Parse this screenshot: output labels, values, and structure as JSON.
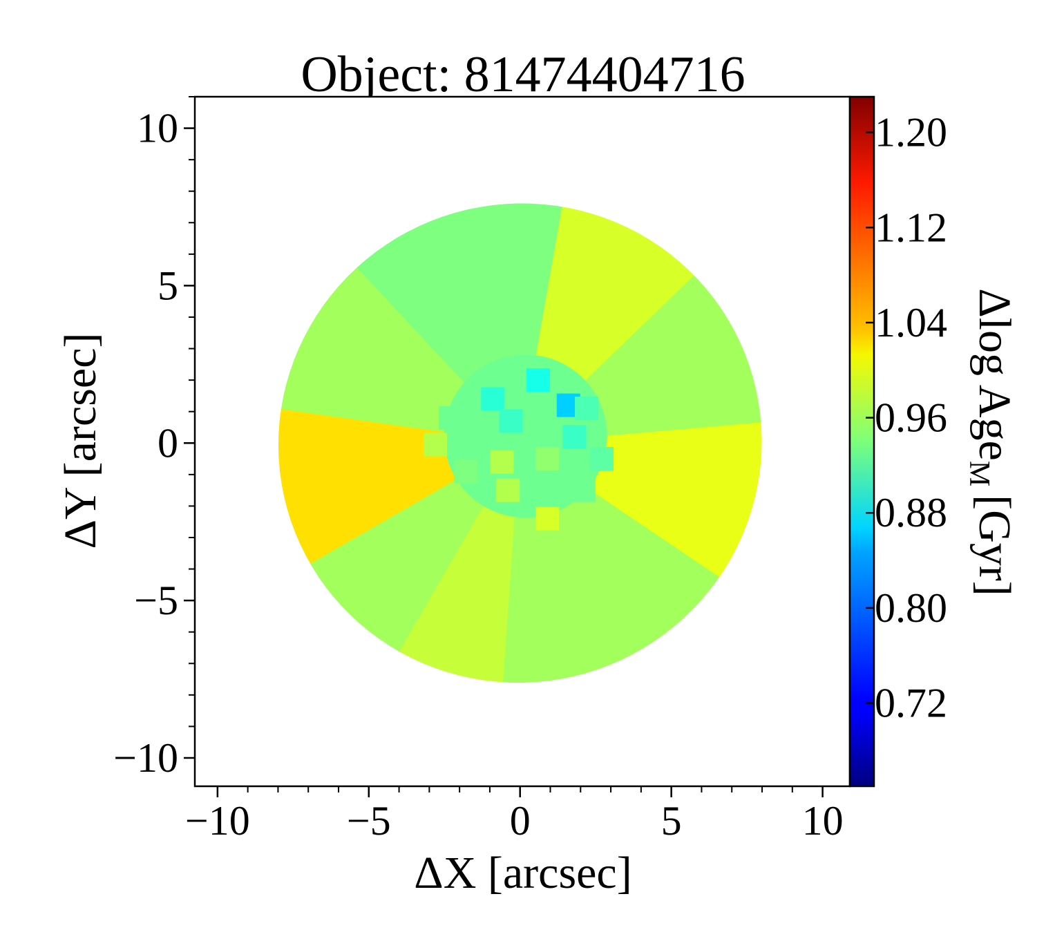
{
  "chart_data": {
    "type": "heatmap",
    "title": "Object: 81474404716",
    "xlabel": "ΔX [arcsec]",
    "ylabel": "ΔY [arcsec]",
    "colorbar_label": "Δlog Age",
    "colorbar_label_sub": "M",
    "colorbar_label_unit": "[Gyr]",
    "xlim": [
      -10.75,
      10.9
    ],
    "ylim": [
      -10.9,
      11.0
    ],
    "xticks": [
      {
        "value": -10,
        "label": "−10"
      },
      {
        "value": -5,
        "label": "−5"
      },
      {
        "value": 0,
        "label": "0"
      },
      {
        "value": 5,
        "label": "5"
      },
      {
        "value": 10,
        "label": "10"
      }
    ],
    "yticks": [
      {
        "value": 10,
        "label": "10"
      },
      {
        "value": 5,
        "label": "5"
      },
      {
        "value": 0,
        "label": "0"
      },
      {
        "value": -5,
        "label": "−5"
      },
      {
        "value": -10,
        "label": "−10"
      }
    ],
    "colorbar": {
      "vmin": 0.65,
      "vmax": 1.23,
      "colormap": "jet",
      "ticks": [
        {
          "value": 1.2,
          "label": "1.20"
        },
        {
          "value": 1.12,
          "label": "1.12"
        },
        {
          "value": 1.04,
          "label": "1.04"
        },
        {
          "value": 0.96,
          "label": "0.96"
        },
        {
          "value": 0.88,
          "label": "0.88"
        },
        {
          "value": 0.8,
          "label": "0.80"
        },
        {
          "value": 0.72,
          "label": "0.72"
        }
      ]
    },
    "map": {
      "shape": "tilted ellipse",
      "center_xy": [
        0,
        0
      ],
      "semi_axes": [
        8.0,
        7.6
      ],
      "sectors": [
        {
          "from_deg": -34,
          "to_deg": 5,
          "value": 1.0
        },
        {
          "from_deg": 5,
          "to_deg": 44,
          "value": 0.96
        },
        {
          "from_deg": 44,
          "to_deg": 80,
          "value": 0.99
        },
        {
          "from_deg": 80,
          "to_deg": 133,
          "value": 0.94
        },
        {
          "from_deg": 133,
          "to_deg": 172,
          "value": 0.96
        },
        {
          "from_deg": 172,
          "to_deg": 210,
          "value": 1.03
        },
        {
          "from_deg": 210,
          "to_deg": 240,
          "value": 0.96
        },
        {
          "from_deg": 240,
          "to_deg": 266,
          "value": 0.98
        },
        {
          "from_deg": 266,
          "to_deg": 326,
          "value": 0.96
        }
      ],
      "core_bins": [
        {
          "x": 1.6,
          "y": 1.2,
          "value": 0.84
        },
        {
          "x": 0.6,
          "y": 2.0,
          "value": 0.88
        },
        {
          "x": -0.9,
          "y": 1.4,
          "value": 0.89
        },
        {
          "x": 2.2,
          "y": 1.1,
          "value": 0.91
        },
        {
          "x": 1.8,
          "y": 0.2,
          "value": 0.9
        },
        {
          "x": -2.3,
          "y": 0.8,
          "value": 0.93
        },
        {
          "x": -0.3,
          "y": 0.7,
          "value": 0.9
        },
        {
          "x": 2.7,
          "y": -0.5,
          "value": 0.92
        },
        {
          "x": -1.8,
          "y": -0.9,
          "value": 0.94
        },
        {
          "x": -2.8,
          "y": -0.05,
          "value": 0.97
        },
        {
          "x": 0.9,
          "y": -0.5,
          "value": 0.95
        },
        {
          "x": -0.6,
          "y": -0.6,
          "value": 0.97
        },
        {
          "x": 0.9,
          "y": -2.4,
          "value": 0.99
        },
        {
          "x": -0.4,
          "y": -1.5,
          "value": 0.97
        },
        {
          "x": 2.1,
          "y": -1.5,
          "value": 0.93
        }
      ]
    }
  }
}
